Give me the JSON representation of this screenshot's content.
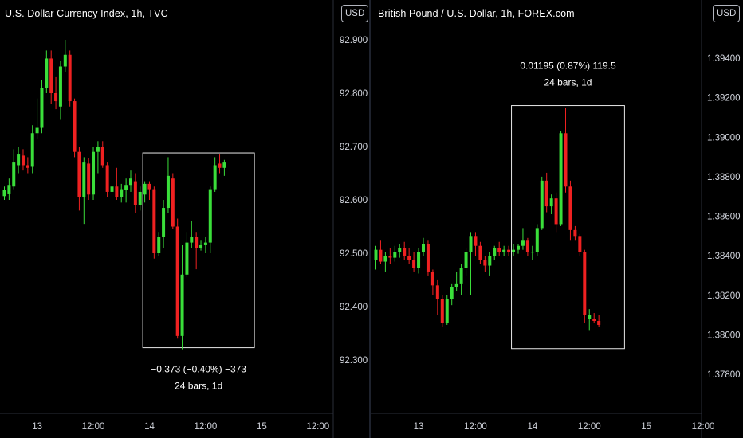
{
  "colors": {
    "up": "#3ade3a",
    "down": "#ef2121",
    "axis_line": "#2a2e39",
    "measure_box": "#e6e6e6"
  },
  "chart_data": [
    {
      "type": "candlestick",
      "title": "U.S. Dollar Currency Index, 1h, TVC",
      "unit_badge": "USD",
      "y_ticks": [
        "92.900",
        "92.800",
        "92.700",
        "92.600",
        "92.500",
        "92.400",
        "92.300"
      ],
      "ylim": [
        92.28,
        92.978
      ],
      "x_ticks": [
        {
          "label": "13",
          "pos": 7
        },
        {
          "label": "12:00",
          "pos": 19
        },
        {
          "label": "14",
          "pos": 31
        },
        {
          "label": "12:00",
          "pos": 43
        },
        {
          "label": "15",
          "pos": 55
        },
        {
          "label": "12:00",
          "pos": 67
        }
      ],
      "candles": [
        {
          "o": 92.607,
          "h": 92.625,
          "l": 92.6,
          "c": 92.618
        },
        {
          "o": 92.612,
          "h": 92.64,
          "l": 92.6,
          "c": 92.628
        },
        {
          "o": 92.625,
          "h": 92.695,
          "l": 92.62,
          "c": 92.67
        },
        {
          "o": 92.665,
          "h": 92.7,
          "l": 92.65,
          "c": 92.685
        },
        {
          "o": 92.683,
          "h": 92.695,
          "l": 92.655,
          "c": 92.665
        },
        {
          "o": 92.665,
          "h": 92.68,
          "l": 92.65,
          "c": 92.66
        },
        {
          "o": 92.662,
          "h": 92.74,
          "l": 92.65,
          "c": 92.725
        },
        {
          "o": 92.725,
          "h": 92.79,
          "l": 92.715,
          "c": 92.735
        },
        {
          "o": 92.735,
          "h": 92.825,
          "l": 92.725,
          "c": 92.81
        },
        {
          "o": 92.81,
          "h": 92.88,
          "l": 92.8,
          "c": 92.865
        },
        {
          "o": 92.865,
          "h": 92.88,
          "l": 92.78,
          "c": 92.8
        },
        {
          "o": 92.8,
          "h": 92.83,
          "l": 92.77,
          "c": 92.785
        },
        {
          "o": 92.775,
          "h": 92.86,
          "l": 92.75,
          "c": 92.85
        },
        {
          "o": 92.85,
          "h": 92.9,
          "l": 92.84,
          "c": 92.872
        },
        {
          "o": 92.872,
          "h": 92.88,
          "l": 92.775,
          "c": 92.785
        },
        {
          "o": 92.785,
          "h": 92.79,
          "l": 92.68,
          "c": 92.69
        },
        {
          "o": 92.69,
          "h": 92.7,
          "l": 92.58,
          "c": 92.605
        },
        {
          "o": 92.605,
          "h": 92.68,
          "l": 92.555,
          "c": 92.67
        },
        {
          "o": 92.668,
          "h": 92.678,
          "l": 92.6,
          "c": 92.61
        },
        {
          "o": 92.61,
          "h": 92.7,
          "l": 92.6,
          "c": 92.69
        },
        {
          "o": 92.69,
          "h": 92.71,
          "l": 92.65,
          "c": 92.7
        },
        {
          "o": 92.7,
          "h": 92.71,
          "l": 92.66,
          "c": 92.665
        },
        {
          "o": 92.665,
          "h": 92.67,
          "l": 92.605,
          "c": 92.615
        },
        {
          "o": 92.615,
          "h": 92.64,
          "l": 92.6,
          "c": 92.625
        },
        {
          "o": 92.625,
          "h": 92.66,
          "l": 92.6,
          "c": 92.605
        },
        {
          "o": 92.605,
          "h": 92.63,
          "l": 92.595,
          "c": 92.62
        },
        {
          "o": 92.618,
          "h": 92.64,
          "l": 92.595,
          "c": 92.628
        },
        {
          "o": 92.628,
          "h": 92.655,
          "l": 92.615,
          "c": 92.64
        },
        {
          "o": 92.635,
          "h": 92.65,
          "l": 92.575,
          "c": 92.59
        },
        {
          "o": 92.59,
          "h": 92.625,
          "l": 92.58,
          "c": 92.615
        },
        {
          "o": 92.61,
          "h": 92.635,
          "l": 92.595,
          "c": 92.63
        },
        {
          "o": 92.63,
          "h": 92.635,
          "l": 92.6,
          "c": 92.62
        },
        {
          "o": 92.62,
          "h": 92.625,
          "l": 92.49,
          "c": 92.5
        },
        {
          "o": 92.5,
          "h": 92.54,
          "l": 92.495,
          "c": 92.53
        },
        {
          "o": 92.53,
          "h": 92.6,
          "l": 92.51,
          "c": 92.585
        },
        {
          "o": 92.585,
          "h": 92.68,
          "l": 92.575,
          "c": 92.645
        },
        {
          "o": 92.64,
          "h": 92.65,
          "l": 92.545,
          "c": 92.55
        },
        {
          "o": 92.55,
          "h": 92.565,
          "l": 92.34,
          "c": 92.345
        },
        {
          "o": 92.345,
          "h": 92.515,
          "l": 92.32,
          "c": 92.46
        },
        {
          "o": 92.46,
          "h": 92.54,
          "l": 92.455,
          "c": 92.52
        },
        {
          "o": 92.52,
          "h": 92.56,
          "l": 92.51,
          "c": 92.53
        },
        {
          "o": 92.53,
          "h": 92.54,
          "l": 92.47,
          "c": 92.51
        },
        {
          "o": 92.51,
          "h": 92.525,
          "l": 92.505,
          "c": 92.515
        },
        {
          "o": 92.515,
          "h": 92.53,
          "l": 92.5,
          "c": 92.52
        },
        {
          "o": 92.52,
          "h": 92.625,
          "l": 92.5,
          "c": 92.62
        },
        {
          "o": 92.62,
          "h": 92.68,
          "l": 92.615,
          "c": 92.665
        },
        {
          "o": 92.668,
          "h": 92.685,
          "l": 92.65,
          "c": 92.66
        },
        {
          "o": 92.66,
          "h": 92.675,
          "l": 92.645,
          "c": 92.67
        }
      ],
      "measure": {
        "from_index": 30,
        "to_index": 53,
        "y_top": 92.688,
        "y_bottom": 92.323,
        "line1": "−0.373 (−0.40%) −373",
        "line2": "24 bars, 1d",
        "label_position": "below"
      }
    },
    {
      "type": "candlestick",
      "title": "British Pound / U.S. Dollar, 1h, FOREX.com",
      "unit_badge": "USD",
      "y_ticks": [
        "1.39400",
        "1.39200",
        "1.39000",
        "1.38800",
        "1.38600",
        "1.38400",
        "1.38200",
        "1.38000",
        "1.37800"
      ],
      "ylim": [
        1.37688,
        1.39804
      ],
      "x_ticks": [
        {
          "label": "13",
          "pos": 9
        },
        {
          "label": "12:00",
          "pos": 21
        },
        {
          "label": "14",
          "pos": 33
        },
        {
          "label": "12:00",
          "pos": 45
        },
        {
          "label": "15",
          "pos": 57
        },
        {
          "label": "12:00",
          "pos": 69
        }
      ],
      "candles": [
        {
          "o": 1.3838,
          "h": 1.3845,
          "l": 1.3833,
          "c": 1.3843
        },
        {
          "o": 1.3843,
          "h": 1.3848,
          "l": 1.3836,
          "c": 1.3837
        },
        {
          "o": 1.3837,
          "h": 1.3842,
          "l": 1.3832,
          "c": 1.384
        },
        {
          "o": 1.384,
          "h": 1.3844,
          "l": 1.3836,
          "c": 1.3839
        },
        {
          "o": 1.3839,
          "h": 1.3845,
          "l": 1.3837,
          "c": 1.3842
        },
        {
          "o": 1.3842,
          "h": 1.3846,
          "l": 1.3839,
          "c": 1.3844
        },
        {
          "o": 1.3844,
          "h": 1.3847,
          "l": 1.3838,
          "c": 1.384
        },
        {
          "o": 1.384,
          "h": 1.3844,
          "l": 1.3836,
          "c": 1.3838
        },
        {
          "o": 1.3838,
          "h": 1.3842,
          "l": 1.3832,
          "c": 1.3834
        },
        {
          "o": 1.3834,
          "h": 1.3844,
          "l": 1.3831,
          "c": 1.3842
        },
        {
          "o": 1.3842,
          "h": 1.3849,
          "l": 1.384,
          "c": 1.3846
        },
        {
          "o": 1.3846,
          "h": 1.3848,
          "l": 1.383,
          "c": 1.3832
        },
        {
          "o": 1.3832,
          "h": 1.3833,
          "l": 1.382,
          "c": 1.3825
        },
        {
          "o": 1.3825,
          "h": 1.3828,
          "l": 1.381,
          "c": 1.3818
        },
        {
          "o": 1.3818,
          "h": 1.382,
          "l": 1.3804,
          "c": 1.3806
        },
        {
          "o": 1.3806,
          "h": 1.382,
          "l": 1.3805,
          "c": 1.3818
        },
        {
          "o": 1.3818,
          "h": 1.3826,
          "l": 1.3815,
          "c": 1.3824
        },
        {
          "o": 1.3824,
          "h": 1.3832,
          "l": 1.3822,
          "c": 1.3826
        },
        {
          "o": 1.3826,
          "h": 1.3836,
          "l": 1.382,
          "c": 1.3834
        },
        {
          "o": 1.3834,
          "h": 1.3844,
          "l": 1.383,
          "c": 1.3842
        },
        {
          "o": 1.3842,
          "h": 1.3852,
          "l": 1.382,
          "c": 1.385
        },
        {
          "o": 1.385,
          "h": 1.3852,
          "l": 1.384,
          "c": 1.3845
        },
        {
          "o": 1.3845,
          "h": 1.3847,
          "l": 1.3836,
          "c": 1.3838
        },
        {
          "o": 1.3838,
          "h": 1.384,
          "l": 1.3832,
          "c": 1.3835
        },
        {
          "o": 1.3835,
          "h": 1.3842,
          "l": 1.383,
          "c": 1.384
        },
        {
          "o": 1.384,
          "h": 1.3845,
          "l": 1.3838,
          "c": 1.3844
        },
        {
          "o": 1.3844,
          "h": 1.3847,
          "l": 1.384,
          "c": 1.3842
        },
        {
          "o": 1.3842,
          "h": 1.3845,
          "l": 1.384,
          "c": 1.3843
        },
        {
          "o": 1.3843,
          "h": 1.3845,
          "l": 1.384,
          "c": 1.3842
        },
        {
          "o": 1.3842,
          "h": 1.3846,
          "l": 1.384,
          "c": 1.3843
        },
        {
          "o": 1.3843,
          "h": 1.3846,
          "l": 1.3841,
          "c": 1.3845
        },
        {
          "o": 1.3845,
          "h": 1.3854,
          "l": 1.3843,
          "c": 1.3848
        },
        {
          "o": 1.3848,
          "h": 1.3849,
          "l": 1.384,
          "c": 1.3842
        },
        {
          "o": 1.3842,
          "h": 1.3845,
          "l": 1.3838,
          "c": 1.3842
        },
        {
          "o": 1.3842,
          "h": 1.3856,
          "l": 1.384,
          "c": 1.3854
        },
        {
          "o": 1.3854,
          "h": 1.388,
          "l": 1.3853,
          "c": 1.3878
        },
        {
          "o": 1.3878,
          "h": 1.3882,
          "l": 1.3862,
          "c": 1.3865
        },
        {
          "o": 1.3865,
          "h": 1.3871,
          "l": 1.3861,
          "c": 1.3869
        },
        {
          "o": 1.3869,
          "h": 1.3872,
          "l": 1.3852,
          "c": 1.3856
        },
        {
          "o": 1.3856,
          "h": 1.3903,
          "l": 1.3855,
          "c": 1.3902
        },
        {
          "o": 1.3902,
          "h": 1.3915,
          "l": 1.3872,
          "c": 1.3875
        },
        {
          "o": 1.3875,
          "h": 1.3878,
          "l": 1.3848,
          "c": 1.3853
        },
        {
          "o": 1.3853,
          "h": 1.3855,
          "l": 1.3848,
          "c": 1.385
        },
        {
          "o": 1.385,
          "h": 1.3851,
          "l": 1.384,
          "c": 1.3842
        },
        {
          "o": 1.3842,
          "h": 1.3843,
          "l": 1.3806,
          "c": 1.381
        },
        {
          "o": 1.3808,
          "h": 1.3813,
          "l": 1.3802,
          "c": 1.381
        },
        {
          "o": 1.3808,
          "h": 1.3811,
          "l": 1.3806,
          "c": 1.3807
        },
        {
          "o": 1.3807,
          "h": 1.381,
          "l": 1.3804,
          "c": 1.3805
        }
      ],
      "measure": {
        "from_index": 29,
        "to_index": 52,
        "y_top": 1.3916,
        "y_bottom": 1.3793,
        "line1": "0.01195 (0.87%) 119.5",
        "line2": "24 bars, 1d",
        "label_position": "above"
      }
    }
  ]
}
